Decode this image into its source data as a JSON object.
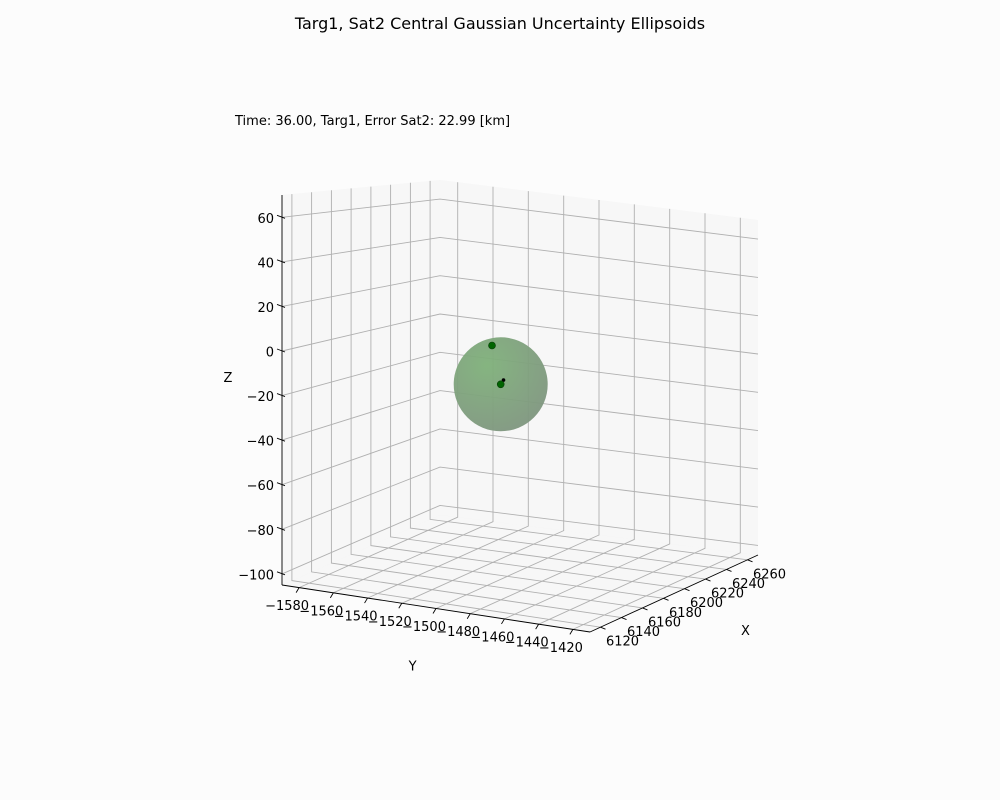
{
  "figure": {
    "title": "Targ1, Sat2 Central Gaussian Uncertainty Ellipsoids",
    "annotation": "Time: 36.00, Targ1, Error Sat2: 22.99 [km]"
  },
  "chart_data": {
    "type": "scatter",
    "projection": "3d",
    "title": "Targ1, Sat2 Central Gaussian Uncertainty Ellipsoids",
    "annotation": "Time: 36.00, Targ1, Error Sat2: 22.99 [km]",
    "grid": true,
    "x_axis": {
      "label": "X",
      "range": [
        6110,
        6270
      ],
      "ticks": [
        6120,
        6140,
        6160,
        6180,
        6200,
        6220,
        6240,
        6260
      ],
      "tick_labels": [
        "6120",
        "6140",
        "6160",
        "6180",
        "6200",
        "6220",
        "6240",
        "6260"
      ]
    },
    "y_axis": {
      "label": "Y",
      "range": [
        -1590,
        -1410
      ],
      "ticks": [
        -1580,
        -1560,
        -1540,
        -1520,
        -1500,
        -1480,
        -1460,
        -1440,
        -1420
      ],
      "tick_labels": [
        "−1580",
        "−1560",
        "−1540",
        "−1520",
        "−1500",
        "−1480",
        "−1460",
        "−1440",
        "−1420"
      ]
    },
    "z_axis": {
      "label": "Z",
      "range": [
        -105,
        70
      ],
      "ticks": [
        -100,
        -80,
        -60,
        -40,
        -20,
        0,
        20,
        40,
        60
      ],
      "tick_labels": [
        "−100",
        "−80",
        "−60",
        "−40",
        "−20",
        "0",
        "20",
        "40",
        "60"
      ]
    },
    "ellipsoid": {
      "center": [
        6182,
        -1505,
        -14
      ],
      "radius": 23,
      "color": "#4f8f4f",
      "opacity": 0.6
    },
    "points": [
      {
        "x": 6182,
        "y": -1505,
        "z": -14,
        "color": "#006400"
      },
      {
        "x": 6182,
        "y": -1510,
        "z": 4,
        "color": "#006400"
      }
    ],
    "vector": {
      "start": [
        6182,
        -1505,
        -14
      ],
      "end": [
        6178,
        -1501,
        -11
      ],
      "color": "#000000"
    }
  }
}
